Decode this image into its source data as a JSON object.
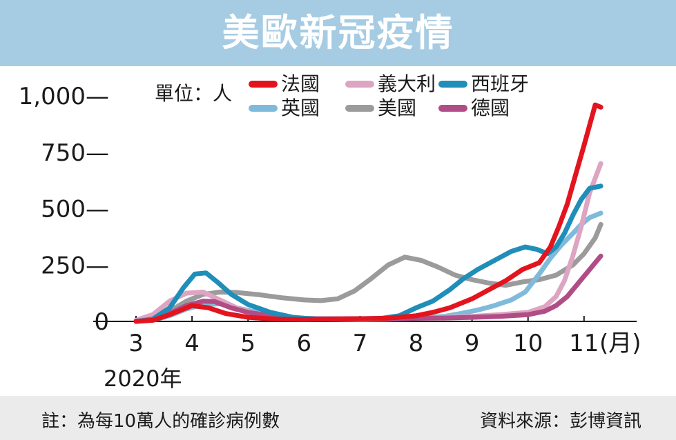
{
  "title": "美歐新冠疫情",
  "unit": "單位：人",
  "footer": {
    "note": "註：為每10萬人的確診病例數",
    "source": "資料來源：彭博資訊"
  },
  "chart_data": {
    "type": "line",
    "xlabel": "(月)",
    "year_label": "2020年",
    "x_ticks": [
      "3",
      "4",
      "5",
      "6",
      "7",
      "8",
      "9",
      "10",
      "11"
    ],
    "y_ticks": [
      "0",
      "250—",
      "500—",
      "750—",
      "1,000—"
    ],
    "y_tick_values": [
      0,
      250,
      500,
      750,
      1000
    ],
    "ylim": [
      0,
      1000
    ],
    "xlim": [
      3,
      11.4
    ],
    "grid": false,
    "legend_position": "top",
    "series": [
      {
        "name": "法國",
        "color": "#e3141e",
        "points": [
          [
            3.0,
            0
          ],
          [
            3.3,
            5
          ],
          [
            3.6,
            30
          ],
          [
            4.0,
            70
          ],
          [
            4.3,
            60
          ],
          [
            4.6,
            35
          ],
          [
            5.0,
            18
          ],
          [
            5.5,
            10
          ],
          [
            6.0,
            8
          ],
          [
            6.5,
            10
          ],
          [
            7.0,
            12
          ],
          [
            7.5,
            14
          ],
          [
            8.0,
            25
          ],
          [
            8.3,
            40
          ],
          [
            8.6,
            60
          ],
          [
            9.0,
            100
          ],
          [
            9.3,
            140
          ],
          [
            9.6,
            180
          ],
          [
            9.9,
            230
          ],
          [
            10.2,
            260
          ],
          [
            10.4,
            330
          ],
          [
            10.55,
            420
          ],
          [
            10.7,
            520
          ],
          [
            10.85,
            650
          ],
          [
            11.0,
            780
          ],
          [
            11.1,
            870
          ],
          [
            11.2,
            960
          ],
          [
            11.3,
            950
          ]
        ]
      },
      {
        "name": "義大利",
        "color": "#dda5c1",
        "points": [
          [
            3.0,
            5
          ],
          [
            3.3,
            30
          ],
          [
            3.6,
            90
          ],
          [
            3.9,
            125
          ],
          [
            4.2,
            130
          ],
          [
            4.5,
            95
          ],
          [
            4.8,
            60
          ],
          [
            5.2,
            30
          ],
          [
            5.6,
            18
          ],
          [
            6.0,
            12
          ],
          [
            6.5,
            10
          ],
          [
            7.0,
            10
          ],
          [
            7.5,
            12
          ],
          [
            8.0,
            14
          ],
          [
            8.5,
            18
          ],
          [
            9.0,
            22
          ],
          [
            9.5,
            30
          ],
          [
            10.0,
            40
          ],
          [
            10.3,
            65
          ],
          [
            10.5,
            110
          ],
          [
            10.65,
            180
          ],
          [
            10.8,
            290
          ],
          [
            10.95,
            420
          ],
          [
            11.1,
            570
          ],
          [
            11.3,
            700
          ]
        ]
      },
      {
        "name": "西班牙",
        "color": "#1f8eb8",
        "points": [
          [
            3.0,
            0
          ],
          [
            3.3,
            10
          ],
          [
            3.6,
            60
          ],
          [
            3.85,
            150
          ],
          [
            4.05,
            210
          ],
          [
            4.25,
            215
          ],
          [
            4.45,
            175
          ],
          [
            4.7,
            120
          ],
          [
            5.0,
            75
          ],
          [
            5.4,
            40
          ],
          [
            5.8,
            18
          ],
          [
            6.2,
            10
          ],
          [
            6.6,
            10
          ],
          [
            7.0,
            12
          ],
          [
            7.4,
            14
          ],
          [
            7.7,
            25
          ],
          [
            8.0,
            60
          ],
          [
            8.3,
            90
          ],
          [
            8.6,
            140
          ],
          [
            8.85,
            190
          ],
          [
            9.1,
            230
          ],
          [
            9.4,
            270
          ],
          [
            9.7,
            310
          ],
          [
            9.95,
            330
          ],
          [
            10.15,
            320
          ],
          [
            10.35,
            300
          ],
          [
            10.5,
            330
          ],
          [
            10.65,
            390
          ],
          [
            10.8,
            470
          ],
          [
            10.95,
            540
          ],
          [
            11.1,
            590
          ],
          [
            11.3,
            600
          ]
        ]
      },
      {
        "name": "英國",
        "color": "#7fbadb",
        "points": [
          [
            3.0,
            0
          ],
          [
            3.3,
            5
          ],
          [
            3.6,
            25
          ],
          [
            3.9,
            55
          ],
          [
            4.2,
            75
          ],
          [
            4.5,
            78
          ],
          [
            4.8,
            60
          ],
          [
            5.2,
            38
          ],
          [
            5.6,
            22
          ],
          [
            6.0,
            14
          ],
          [
            6.5,
            10
          ],
          [
            7.0,
            9
          ],
          [
            7.5,
            10
          ],
          [
            8.0,
            14
          ],
          [
            8.5,
            22
          ],
          [
            8.8,
            35
          ],
          [
            9.1,
            50
          ],
          [
            9.4,
            70
          ],
          [
            9.7,
            95
          ],
          [
            9.95,
            130
          ],
          [
            10.2,
            210
          ],
          [
            10.4,
            280
          ],
          [
            10.6,
            340
          ],
          [
            10.8,
            390
          ],
          [
            10.95,
            430
          ],
          [
            11.1,
            460
          ],
          [
            11.3,
            480
          ]
        ]
      },
      {
        "name": "美國",
        "color": "#9b9b9b",
        "points": [
          [
            3.0,
            0
          ],
          [
            3.3,
            10
          ],
          [
            3.6,
            45
          ],
          [
            3.9,
            90
          ],
          [
            4.2,
            120
          ],
          [
            4.5,
            130
          ],
          [
            4.8,
            128
          ],
          [
            5.2,
            118
          ],
          [
            5.6,
            105
          ],
          [
            6.0,
            95
          ],
          [
            6.3,
            92
          ],
          [
            6.6,
            100
          ],
          [
            6.9,
            135
          ],
          [
            7.2,
            190
          ],
          [
            7.5,
            250
          ],
          [
            7.8,
            285
          ],
          [
            8.1,
            270
          ],
          [
            8.4,
            240
          ],
          [
            8.7,
            205
          ],
          [
            9.0,
            185
          ],
          [
            9.3,
            170
          ],
          [
            9.6,
            160
          ],
          [
            9.9,
            175
          ],
          [
            10.2,
            185
          ],
          [
            10.5,
            205
          ],
          [
            10.8,
            250
          ],
          [
            11.0,
            300
          ],
          [
            11.2,
            370
          ],
          [
            11.3,
            430
          ]
        ]
      },
      {
        "name": "德國",
        "color": "#b14d86",
        "points": [
          [
            3.0,
            0
          ],
          [
            3.3,
            8
          ],
          [
            3.6,
            35
          ],
          [
            3.9,
            70
          ],
          [
            4.2,
            90
          ],
          [
            4.4,
            88
          ],
          [
            4.7,
            60
          ],
          [
            5.0,
            40
          ],
          [
            5.4,
            25
          ],
          [
            5.8,
            16
          ],
          [
            6.2,
            12
          ],
          [
            6.6,
            12
          ],
          [
            7.0,
            12
          ],
          [
            7.5,
            12
          ],
          [
            8.0,
            14
          ],
          [
            8.5,
            15
          ],
          [
            9.0,
            18
          ],
          [
            9.5,
            22
          ],
          [
            10.0,
            30
          ],
          [
            10.3,
            45
          ],
          [
            10.5,
            70
          ],
          [
            10.7,
            110
          ],
          [
            10.9,
            170
          ],
          [
            11.1,
            230
          ],
          [
            11.3,
            290
          ]
        ]
      }
    ]
  }
}
